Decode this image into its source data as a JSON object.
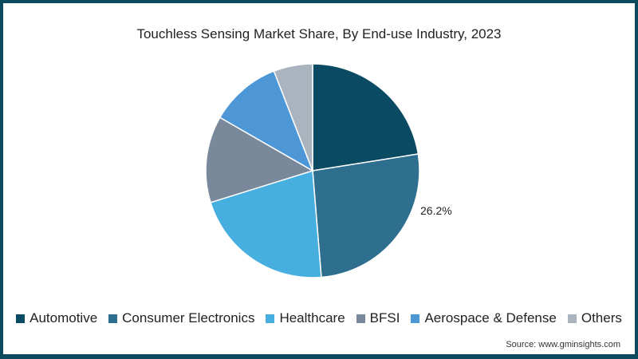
{
  "chart_data": {
    "type": "pie",
    "title": "Touchless Sensing Market Share, By End-use Industry, 2023",
    "categories": [
      "Automotive",
      "Consumer Electronics",
      "Healthcare",
      "BFSI",
      "Aerospace & Defense",
      "Others"
    ],
    "values": [
      22.5,
      26.2,
      21.5,
      13.1,
      10.8,
      5.9
    ],
    "colors": [
      "#0b4a63",
      "#2e6e8e",
      "#47aee0",
      "#7a889c",
      "#4e97d6",
      "#a9b4bf"
    ],
    "data_labels": [
      {
        "category": "Consumer Electronics",
        "text": "26.2%"
      }
    ],
    "legend_position": "bottom",
    "start_angle_deg": 0,
    "direction": "clockwise"
  },
  "title": "Touchless Sensing Market Share, By End-use Industry, 2023",
  "label": "26.2%",
  "legend": [
    "Automotive",
    "Consumer Electronics",
    "Healthcare",
    "BFSI",
    "Aerospace & Defense",
    "Others"
  ],
  "source": "Source: www.gminsights.com"
}
